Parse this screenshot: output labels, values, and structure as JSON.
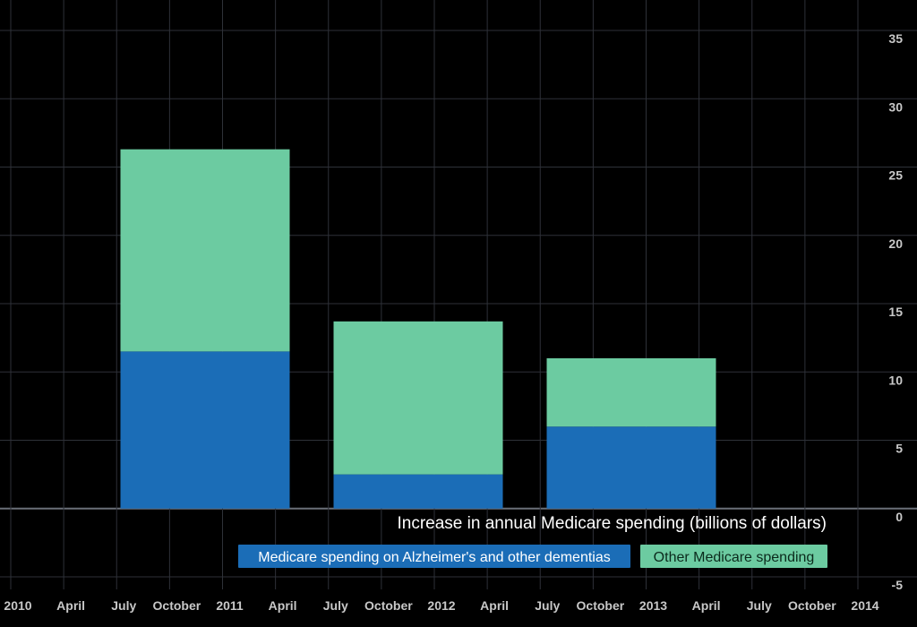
{
  "chart_data": {
    "type": "bar",
    "stacked": true,
    "title": "Increase in annual Medicare spending (billions of dollars)",
    "x_axis": {
      "type": "date",
      "range": [
        "2010-01-01",
        "2014-01-01"
      ],
      "tick_labels": [
        "2010",
        "April",
        "July",
        "October",
        "2011",
        "April",
        "July",
        "October",
        "2012",
        "April",
        "July",
        "October",
        "2013",
        "April",
        "July",
        "October",
        "2014"
      ]
    },
    "y_axis": {
      "range": [
        -5,
        35
      ],
      "ticks": [
        -5,
        0,
        5,
        10,
        15,
        20,
        25,
        30,
        35
      ],
      "position": "right"
    },
    "grid": true,
    "legend_position": "bottom-right",
    "categories": [
      "2011",
      "2012",
      "2013"
    ],
    "series": [
      {
        "name": "Medicare spending on Alzheimer's and other dementias",
        "color": "#1b6db7",
        "values": [
          11.5,
          2.5,
          6
        ]
      },
      {
        "name": "Other Medicare spending",
        "color": "#6ccba1",
        "values": [
          14.8,
          11.2,
          5
        ]
      }
    ]
  }
}
